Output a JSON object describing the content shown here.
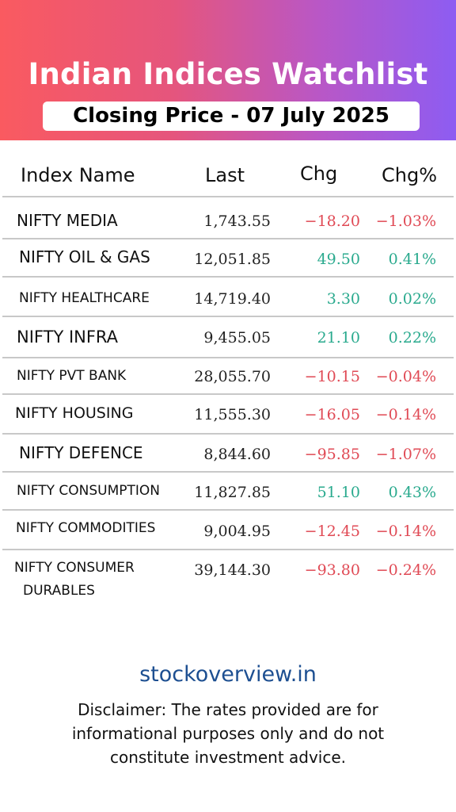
{
  "header": {
    "title": "Indian Indices Watchlist",
    "subtitle": "Closing Price - 07 July 2025"
  },
  "colors": {
    "gradient_start": "#fa5a60",
    "gradient_end": "#8d5cf2",
    "positive": "#2aaa8e",
    "negative": "#e04a55",
    "link": "#1d4f91"
  },
  "table": {
    "headers": {
      "name": "Index Name",
      "last": "Last",
      "chg": "Chg",
      "chg_pct": "Chg%"
    },
    "rows": [
      {
        "name": "NIFTY MEDIA",
        "last": "1,743.55",
        "chg": "−18.20",
        "chg_pct": "−1.03%",
        "direction": "negative"
      },
      {
        "name": "NIFTY OIL & GAS",
        "last": "12,051.85",
        "chg": "49.50",
        "chg_pct": "0.41%",
        "direction": "positive"
      },
      {
        "name": "NIFTY HEALTHCARE",
        "last": "14,719.40",
        "chg": "3.30",
        "chg_pct": "0.02%",
        "direction": "positive"
      },
      {
        "name": "NIFTY INFRA",
        "last": "9,455.05",
        "chg": "21.10",
        "chg_pct": "0.22%",
        "direction": "positive"
      },
      {
        "name": "NIFTY PVT BANK",
        "last": "28,055.70",
        "chg": "−10.15",
        "chg_pct": "−0.04%",
        "direction": "negative"
      },
      {
        "name": "NIFTY HOUSING",
        "last": "11,555.30",
        "chg": "−16.05",
        "chg_pct": "−0.14%",
        "direction": "negative"
      },
      {
        "name": "NIFTY DEFENCE",
        "last": "8,844.60",
        "chg": "−95.85",
        "chg_pct": "−1.07%",
        "direction": "negative"
      },
      {
        "name": "NIFTY CONSUMPTION",
        "last": "11,827.85",
        "chg": "51.10",
        "chg_pct": "0.43%",
        "direction": "positive"
      },
      {
        "name": "NIFTY COMMODITIES",
        "last": "9,004.95",
        "chg": "−12.45",
        "chg_pct": "−0.14%",
        "direction": "negative"
      },
      {
        "name_line1": "NIFTY CONSUMER",
        "name_line2": "DURABLES",
        "last": "39,144.30",
        "chg": "−93.80",
        "chg_pct": "−0.24%",
        "direction": "negative"
      }
    ]
  },
  "footer": {
    "website": "stockoverview.in",
    "disclaimer": "Disclaimer: The rates provided are for informational purposes only and do not constitute investment advice."
  }
}
